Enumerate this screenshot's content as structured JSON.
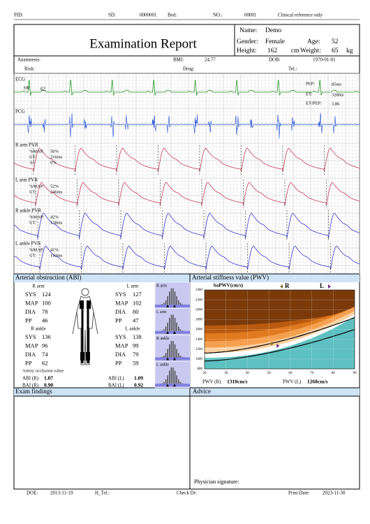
{
  "top_bar": {
    "pid_label": "PID:",
    "sd_label": "SD:",
    "sd": "0000001",
    "bed_label": "Bed:",
    "no_label": "NO.:",
    "no": "00001",
    "note": "Clinical reference only"
  },
  "header": {
    "title": "Examination Report",
    "name_label": "Name:",
    "name": "Demo",
    "gender_label": "Gender:",
    "gender": "Female",
    "age_label": "Age:",
    "age": 52,
    "height_label": "Height:",
    "height": 162,
    "height_unit": "cm",
    "weight_label": "Weight:",
    "weight": 65,
    "weight_unit": "kg"
  },
  "info": {
    "anamnesis_label": "Anamnesis:",
    "bmi_label": "BMI:",
    "bmi": 24.77,
    "dob_label": "DOB:",
    "dob": "1970-01-01",
    "risk_label": "Risk:",
    "drug_label": "Drug:",
    "tel_label": "Tel.:"
  },
  "waveforms": {
    "ecg": {
      "label": "ECG",
      "hr_label": "HR",
      "hr": 62,
      "pep_label": "PEP:",
      "pep": "85ms",
      "et_label": "ET:",
      "et": "328ms",
      "ratio_label": "ET/PEP:",
      "ratio": 3.86
    },
    "pcg": {
      "label": "PCG"
    },
    "pvr": [
      {
        "label": "R arm PVR",
        "rows": [
          [
            "%MAP:",
            "50%"
          ],
          [
            "UT:",
            "216ms"
          ],
          [
            "AI:",
            "0%"
          ]
        ]
      },
      {
        "label": "L arm PVR",
        "rows": [
          [
            "%MAP:",
            "52%"
          ],
          [
            "UT:",
            "246ms"
          ]
        ]
      },
      {
        "label": "R ankle PVR",
        "rows": [
          [
            "%MAP:",
            "42%"
          ],
          [
            "UT:",
            "138ms"
          ]
        ]
      },
      {
        "label": "L ankle PVR",
        "rows": [
          [
            "%MAP:",
            "41%"
          ],
          [
            "UT:",
            "143ms"
          ]
        ]
      }
    ]
  },
  "abi": {
    "title": "Arterial obstruction (ABI)",
    "sites": [
      {
        "label": "R arm",
        "rows": [
          [
            "SYS",
            124
          ],
          [
            "MAP",
            100
          ],
          [
            "DIA",
            78
          ],
          [
            "PP",
            46
          ]
        ]
      },
      {
        "label": "L arm",
        "rows": [
          [
            "SYS",
            127
          ],
          [
            "MAP",
            102
          ],
          [
            "DIA",
            80
          ],
          [
            "PP",
            47
          ]
        ]
      },
      {
        "label": "R ankle",
        "rows": [
          [
            "SYS",
            136
          ],
          [
            "MAP",
            96
          ],
          [
            "DIA",
            74
          ],
          [
            "PP",
            62
          ]
        ]
      },
      {
        "label": "L ankle",
        "rows": [
          [
            "SYS",
            138
          ],
          [
            "MAP",
            99
          ],
          [
            "DIA",
            79
          ],
          [
            "PP",
            59
          ]
        ]
      }
    ],
    "occlusion_label": "Artery occlusion value",
    "indices": [
      [
        "ABI (R)",
        "1.07"
      ],
      [
        "BAI (R)",
        "0.90"
      ],
      [
        "ABI (L)",
        "1.09"
      ],
      [
        "BAI (L)",
        "0.92"
      ]
    ],
    "histograms": [
      "R arm",
      "L arm",
      "R ankle",
      "L ankle"
    ]
  },
  "pwv": {
    "title": "Arterial stiffness value (PWV)",
    "axis_label": "baPWV(cm/s)",
    "r_label": "R",
    "l_label": "L",
    "xlim": [
      20,
      90
    ],
    "ylim": [
      800,
      2400
    ],
    "xticks": [
      20,
      30,
      40,
      50,
      60,
      70,
      80,
      90
    ],
    "yticks": [
      800,
      1000,
      1200,
      1400,
      1600,
      1800,
      2000,
      2200,
      2400
    ],
    "results": [
      {
        "label": "PWV (R)",
        "value": 1310,
        "value_label": "1310cm/s",
        "color": "#8b6d1e"
      },
      {
        "label": "PWV (L)",
        "value": 1268,
        "value_label": "1268cm/s",
        "color": "#6a2a8a"
      }
    ]
  },
  "findings": {
    "title": "Exam findings"
  },
  "advice": {
    "title": "Advice",
    "signature_label": "Physician signature:"
  },
  "footer": {
    "doe_label": "DOE:",
    "doe": "2013-11-19",
    "htel_label": "H_Tel.:",
    "check_label": "Check Dr:",
    "print_label": "Print Date:",
    "print_date": "2023-11-30"
  }
}
